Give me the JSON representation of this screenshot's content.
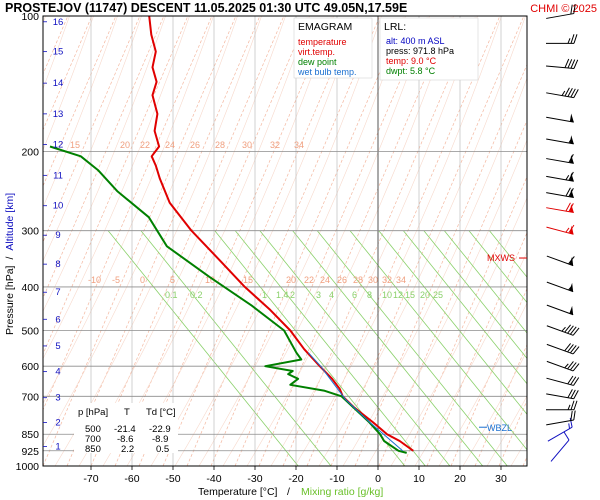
{
  "header": {
    "title": "PROSTEJOV (11747)   DESCENT   11.05.2025 01:30 UTC  49.05N,17.59E",
    "copyright": "CHMI © 2025"
  },
  "legend": {
    "title": "EMAGRAM",
    "items": [
      {
        "label": "temperature",
        "color": "#e00000"
      },
      {
        "label": "virt.temp.",
        "color": "#e00000"
      },
      {
        "label": "dew point",
        "color": "#008000"
      },
      {
        "label": "wet bulb temp.",
        "color": "#1a6fd0"
      }
    ]
  },
  "lrl": {
    "title": "LRL:",
    "lines": [
      {
        "text": "alt: 400 m ASL",
        "color": "#0000c0"
      },
      {
        "text": "press: 971.8 hPa",
        "color": "#000000"
      },
      {
        "text": "temp: 9.0 °C",
        "color": "#e00000"
      },
      {
        "text": "dwpt: 5.8 °C",
        "color": "#008000"
      }
    ]
  },
  "labels": {
    "mxws": "MXWS",
    "wbzl": "WBZL"
  },
  "table": {
    "headers": [
      "p [hPa]",
      "T",
      "Td [°C]"
    ],
    "rows": [
      [
        "500",
        "-21.4",
        "-22.9"
      ],
      [
        "700",
        "-8.6",
        "-8.9"
      ],
      [
        "850",
        "2.2",
        "0.5"
      ]
    ]
  },
  "chart_data": {
    "type": "line",
    "title": "EMAGRAM",
    "xlabel": "Temperature [°C]",
    "xlabel_sep": "/",
    "xlabel2": "Mixing ratio [g/kg]",
    "ylabel": "Pressure [hPa]",
    "ylabel_sep": "/",
    "ylabel2": "Altitude [km]",
    "y_scale": "log",
    "xlim": [
      -80,
      38
    ],
    "ylim": [
      1000,
      100
    ],
    "x_ticks": [
      -70,
      -60,
      -50,
      -40,
      -30,
      -20,
      -10,
      0,
      10,
      20,
      30
    ],
    "p_ticks": [
      100,
      200,
      300,
      400,
      500,
      600,
      700,
      850,
      925,
      1000
    ],
    "km_ticks": [
      {
        "label": "1",
        "p": 905
      },
      {
        "label": "2",
        "p": 800
      },
      {
        "label": "3",
        "p": 705
      },
      {
        "label": "4",
        "p": 617
      },
      {
        "label": "5",
        "p": 541
      },
      {
        "label": "6",
        "p": 472
      },
      {
        "label": "7",
        "p": 411
      },
      {
        "label": "8",
        "p": 356
      },
      {
        "label": "9",
        "p": 307
      },
      {
        "label": "10",
        "p": 264
      },
      {
        "label": "11",
        "p": 226
      },
      {
        "label": "12",
        "p": 193
      },
      {
        "label": "13",
        "p": 165
      },
      {
        "label": "14",
        "p": 141
      },
      {
        "label": "15",
        "p": 120
      },
      {
        "label": "16",
        "p": 103
      }
    ],
    "mixing_ratio_labels": [
      "0.1",
      "0.2",
      "1",
      "1.4",
      "2",
      "3",
      "4",
      "6",
      "8",
      "10",
      "12",
      "15",
      "20",
      "25"
    ],
    "dry_adiabat_labels_upper": [
      "15",
      "20",
      "22",
      "24",
      "26",
      "28",
      "30",
      "32",
      "34"
    ],
    "dry_adiabat_labels_lower": [
      "-10",
      "-5",
      "0",
      "5",
      "10",
      "15",
      "20",
      "22",
      "24",
      "26",
      "28",
      "30",
      "32",
      "34"
    ],
    "series": [
      {
        "name": "temperature",
        "color": "#e00000",
        "points": [
          [
            8.6,
            925
          ],
          [
            5.3,
            880
          ],
          [
            2.2,
            850
          ],
          [
            -1.2,
            800
          ],
          [
            -5.9,
            740
          ],
          [
            -8.6,
            700
          ],
          [
            -9.3,
            675
          ],
          [
            -11.2,
            640
          ],
          [
            -14.2,
            600
          ],
          [
            -18.0,
            550
          ],
          [
            -21.4,
            500
          ],
          [
            -26.3,
            450
          ],
          [
            -32.5,
            400
          ],
          [
            -38.5,
            350
          ],
          [
            -45.5,
            300
          ],
          [
            -50.8,
            260
          ],
          [
            -53.2,
            230
          ],
          [
            -54.2,
            215
          ],
          [
            -55.2,
            205
          ],
          [
            -53.4,
            195
          ],
          [
            -54.5,
            180
          ],
          [
            -53.8,
            165
          ],
          [
            -55.0,
            150
          ],
          [
            -54.0,
            140
          ],
          [
            -55.0,
            130
          ],
          [
            -54.2,
            120
          ],
          [
            -55.3,
            110
          ],
          [
            -55.8,
            100
          ]
        ]
      },
      {
        "name": "dew point",
        "color": "#008000",
        "points": [
          [
            7.0,
            935
          ],
          [
            5.0,
            925
          ],
          [
            1.5,
            880
          ],
          [
            0.5,
            850
          ],
          [
            -2.1,
            800
          ],
          [
            -8.9,
            700
          ],
          [
            -13.2,
            680
          ],
          [
            -21.4,
            660
          ],
          [
            -19.5,
            640
          ],
          [
            -21.9,
            625
          ],
          [
            -20.8,
            615
          ],
          [
            -27.5,
            600
          ],
          [
            -18.7,
            580
          ],
          [
            -19.9,
            560
          ],
          [
            -22.9,
            500
          ],
          [
            -30.8,
            440
          ],
          [
            -41.1,
            380
          ],
          [
            -51.5,
            325
          ],
          [
            -55.9,
            280
          ],
          [
            -63.6,
            245
          ],
          [
            -68.3,
            220
          ],
          [
            -72.5,
            205
          ],
          [
            -80.0,
            195
          ]
        ]
      },
      {
        "name": "wet bulb temp.",
        "color": "#1a6fd0",
        "points": [
          [
            6.0,
            925
          ],
          [
            2.0,
            860
          ],
          [
            -2.0,
            800
          ],
          [
            -8.0,
            710
          ],
          [
            -14.0,
            600
          ],
          [
            -17.0,
            560
          ]
        ]
      }
    ],
    "wind_barbs": [
      {
        "p": 925,
        "dir": 220,
        "speed": 10
      },
      {
        "p": 850,
        "dir": 240,
        "speed": 15
      },
      {
        "p": 800,
        "dir": 260,
        "speed": 20
      },
      {
        "p": 750,
        "dir": 270,
        "speed": 25
      },
      {
        "p": 700,
        "dir": 280,
        "speed": 30
      },
      {
        "p": 650,
        "dir": 285,
        "speed": 30
      },
      {
        "p": 600,
        "dir": 290,
        "speed": 35
      },
      {
        "p": 550,
        "dir": 290,
        "speed": 40
      },
      {
        "p": 500,
        "dir": 290,
        "speed": 45
      },
      {
        "p": 450,
        "dir": 290,
        "speed": 50
      },
      {
        "p": 400,
        "dir": 290,
        "speed": 55
      },
      {
        "p": 350,
        "dir": 290,
        "speed": 60
      },
      {
        "p": 300,
        "dir": 285,
        "speed": 65
      },
      {
        "p": 270,
        "dir": 280,
        "speed": 70
      },
      {
        "p": 250,
        "dir": 280,
        "speed": 70
      },
      {
        "p": 230,
        "dir": 280,
        "speed": 65
      },
      {
        "p": 210,
        "dir": 280,
        "speed": 60
      },
      {
        "p": 190,
        "dir": 280,
        "speed": 55
      },
      {
        "p": 170,
        "dir": 280,
        "speed": 50
      },
      {
        "p": 150,
        "dir": 280,
        "speed": 45
      },
      {
        "p": 130,
        "dir": 275,
        "speed": 40
      },
      {
        "p": 115,
        "dir": 270,
        "speed": 25
      },
      {
        "p": 100,
        "dir": 260,
        "speed": 20
      }
    ],
    "mxws_p": 345,
    "wbzl_p": 820,
    "colors": {
      "isobar": "#8c8c8c",
      "isotherm": "#b4b4b4",
      "dry_adiabat": "#f4b8a0",
      "moist_adiabat": "#f7d9cc",
      "mixing_ratio": "#8ad06a",
      "altitude": "#1010c0",
      "accent_red": "#e00000"
    }
  }
}
